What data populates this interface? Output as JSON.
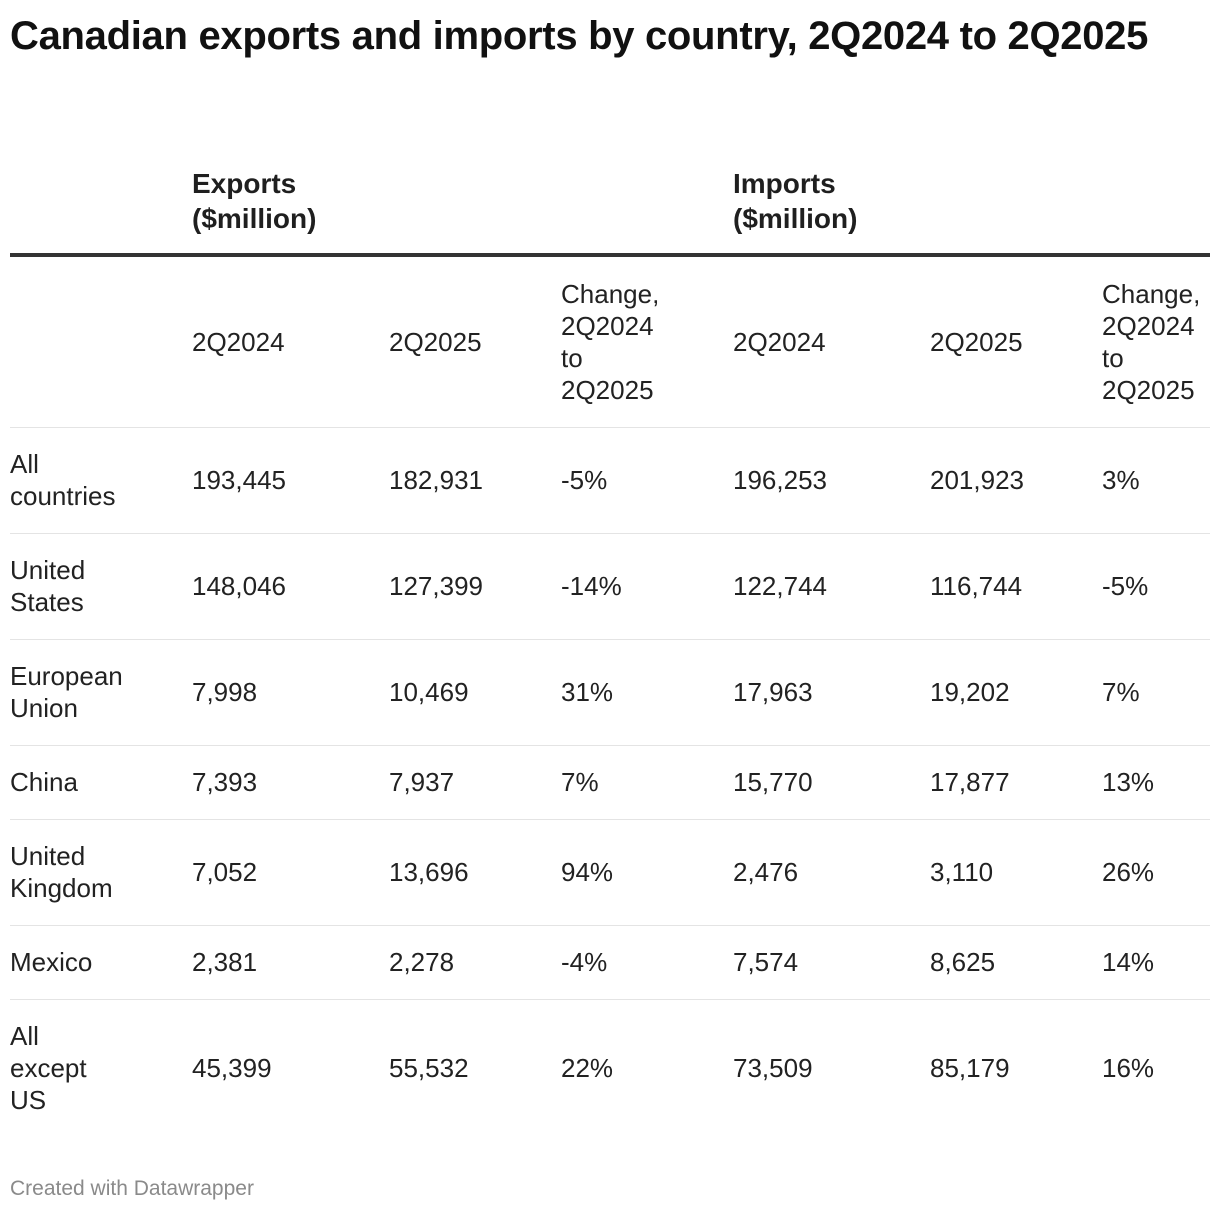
{
  "chart_data": {
    "type": "table",
    "title": "Canadian exports and imports by country, 2Q2024 to 2Q2025",
    "groups": [
      "Exports\n($million)",
      "Imports\n($million)"
    ],
    "columns": [
      "",
      "2Q2024",
      "2Q2025",
      "Change,\n2Q2024\nto\n2Q2025",
      "2Q2024",
      "2Q2025",
      "Change,\n2Q2024\nto\n2Q2025"
    ],
    "rows": [
      {
        "label": "All\ncountries",
        "values": [
          "193,445",
          "182,931",
          "-5%",
          "196,253",
          "201,923",
          "3%"
        ]
      },
      {
        "label": "United\nStates",
        "values": [
          "148,046",
          "127,399",
          "-14%",
          "122,744",
          "116,744",
          "-5%"
        ]
      },
      {
        "label": "European\nUnion",
        "values": [
          "7,998",
          "10,469",
          "31%",
          "17,963",
          "19,202",
          "7%"
        ]
      },
      {
        "label": "China",
        "values": [
          "7,393",
          "7,937",
          "7%",
          "15,770",
          "17,877",
          "13%"
        ]
      },
      {
        "label": "United\nKingdom",
        "values": [
          "7,052",
          "13,696",
          "94%",
          "2,476",
          "3,110",
          "26%"
        ]
      },
      {
        "label": "Mexico",
        "values": [
          "2,381",
          "2,278",
          "-4%",
          "7,574",
          "8,625",
          "14%"
        ]
      },
      {
        "label": "All\nexcept\nUS",
        "values": [
          "45,399",
          "55,532",
          "22%",
          "73,509",
          "85,179",
          "16%"
        ]
      }
    ]
  },
  "footer": {
    "credit": "Created with Datawrapper"
  }
}
